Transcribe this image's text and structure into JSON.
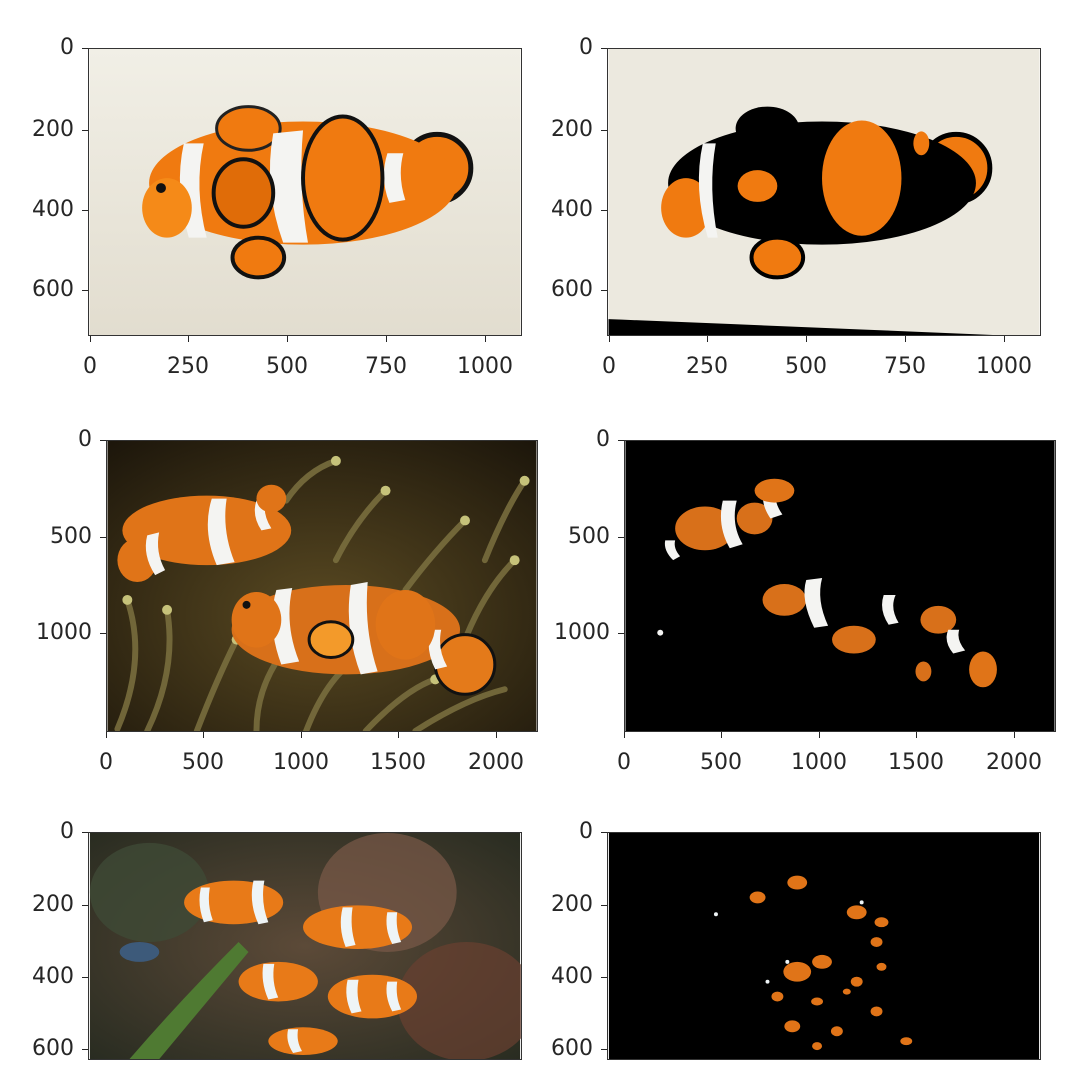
{
  "panels": [
    {
      "id": "p1",
      "title": "",
      "image": "clownfish-single-original",
      "x_ticks": [
        "0",
        "250",
        "500",
        "750",
        "1000"
      ],
      "y_ticks": [
        "0",
        "200",
        "400",
        "600"
      ]
    },
    {
      "id": "p2",
      "title": "",
      "image": "clownfish-single-masked",
      "x_ticks": [
        "0",
        "250",
        "500",
        "750",
        "1000"
      ],
      "y_ticks": [
        "0",
        "200",
        "400",
        "600"
      ]
    },
    {
      "id": "p3",
      "title": "",
      "image": "clownfish-pair-anemone-original",
      "x_ticks": [
        "0",
        "500",
        "1000",
        "1500",
        "2000"
      ],
      "y_ticks": [
        "0",
        "500",
        "1000"
      ]
    },
    {
      "id": "p4",
      "title": "",
      "image": "clownfish-pair-anemone-masked",
      "x_ticks": [
        "0",
        "500",
        "1000",
        "1500",
        "2000"
      ],
      "y_ticks": [
        "0",
        "500",
        "1000"
      ]
    },
    {
      "id": "p5",
      "title": "",
      "image": "clownfish-group-reef-original",
      "x_ticks": [],
      "y_ticks": [
        "0",
        "200",
        "400",
        "600"
      ]
    },
    {
      "id": "p6",
      "title": "",
      "image": "clownfish-group-reef-masked",
      "x_ticks": [],
      "y_ticks": [
        "0",
        "200",
        "400",
        "600"
      ]
    }
  ],
  "colors": {
    "orange": "#f07a10",
    "dark_orange": "#c85a08",
    "white_band": "#f4f4f2",
    "black": "#000000",
    "bg_light": "#ece9df"
  }
}
